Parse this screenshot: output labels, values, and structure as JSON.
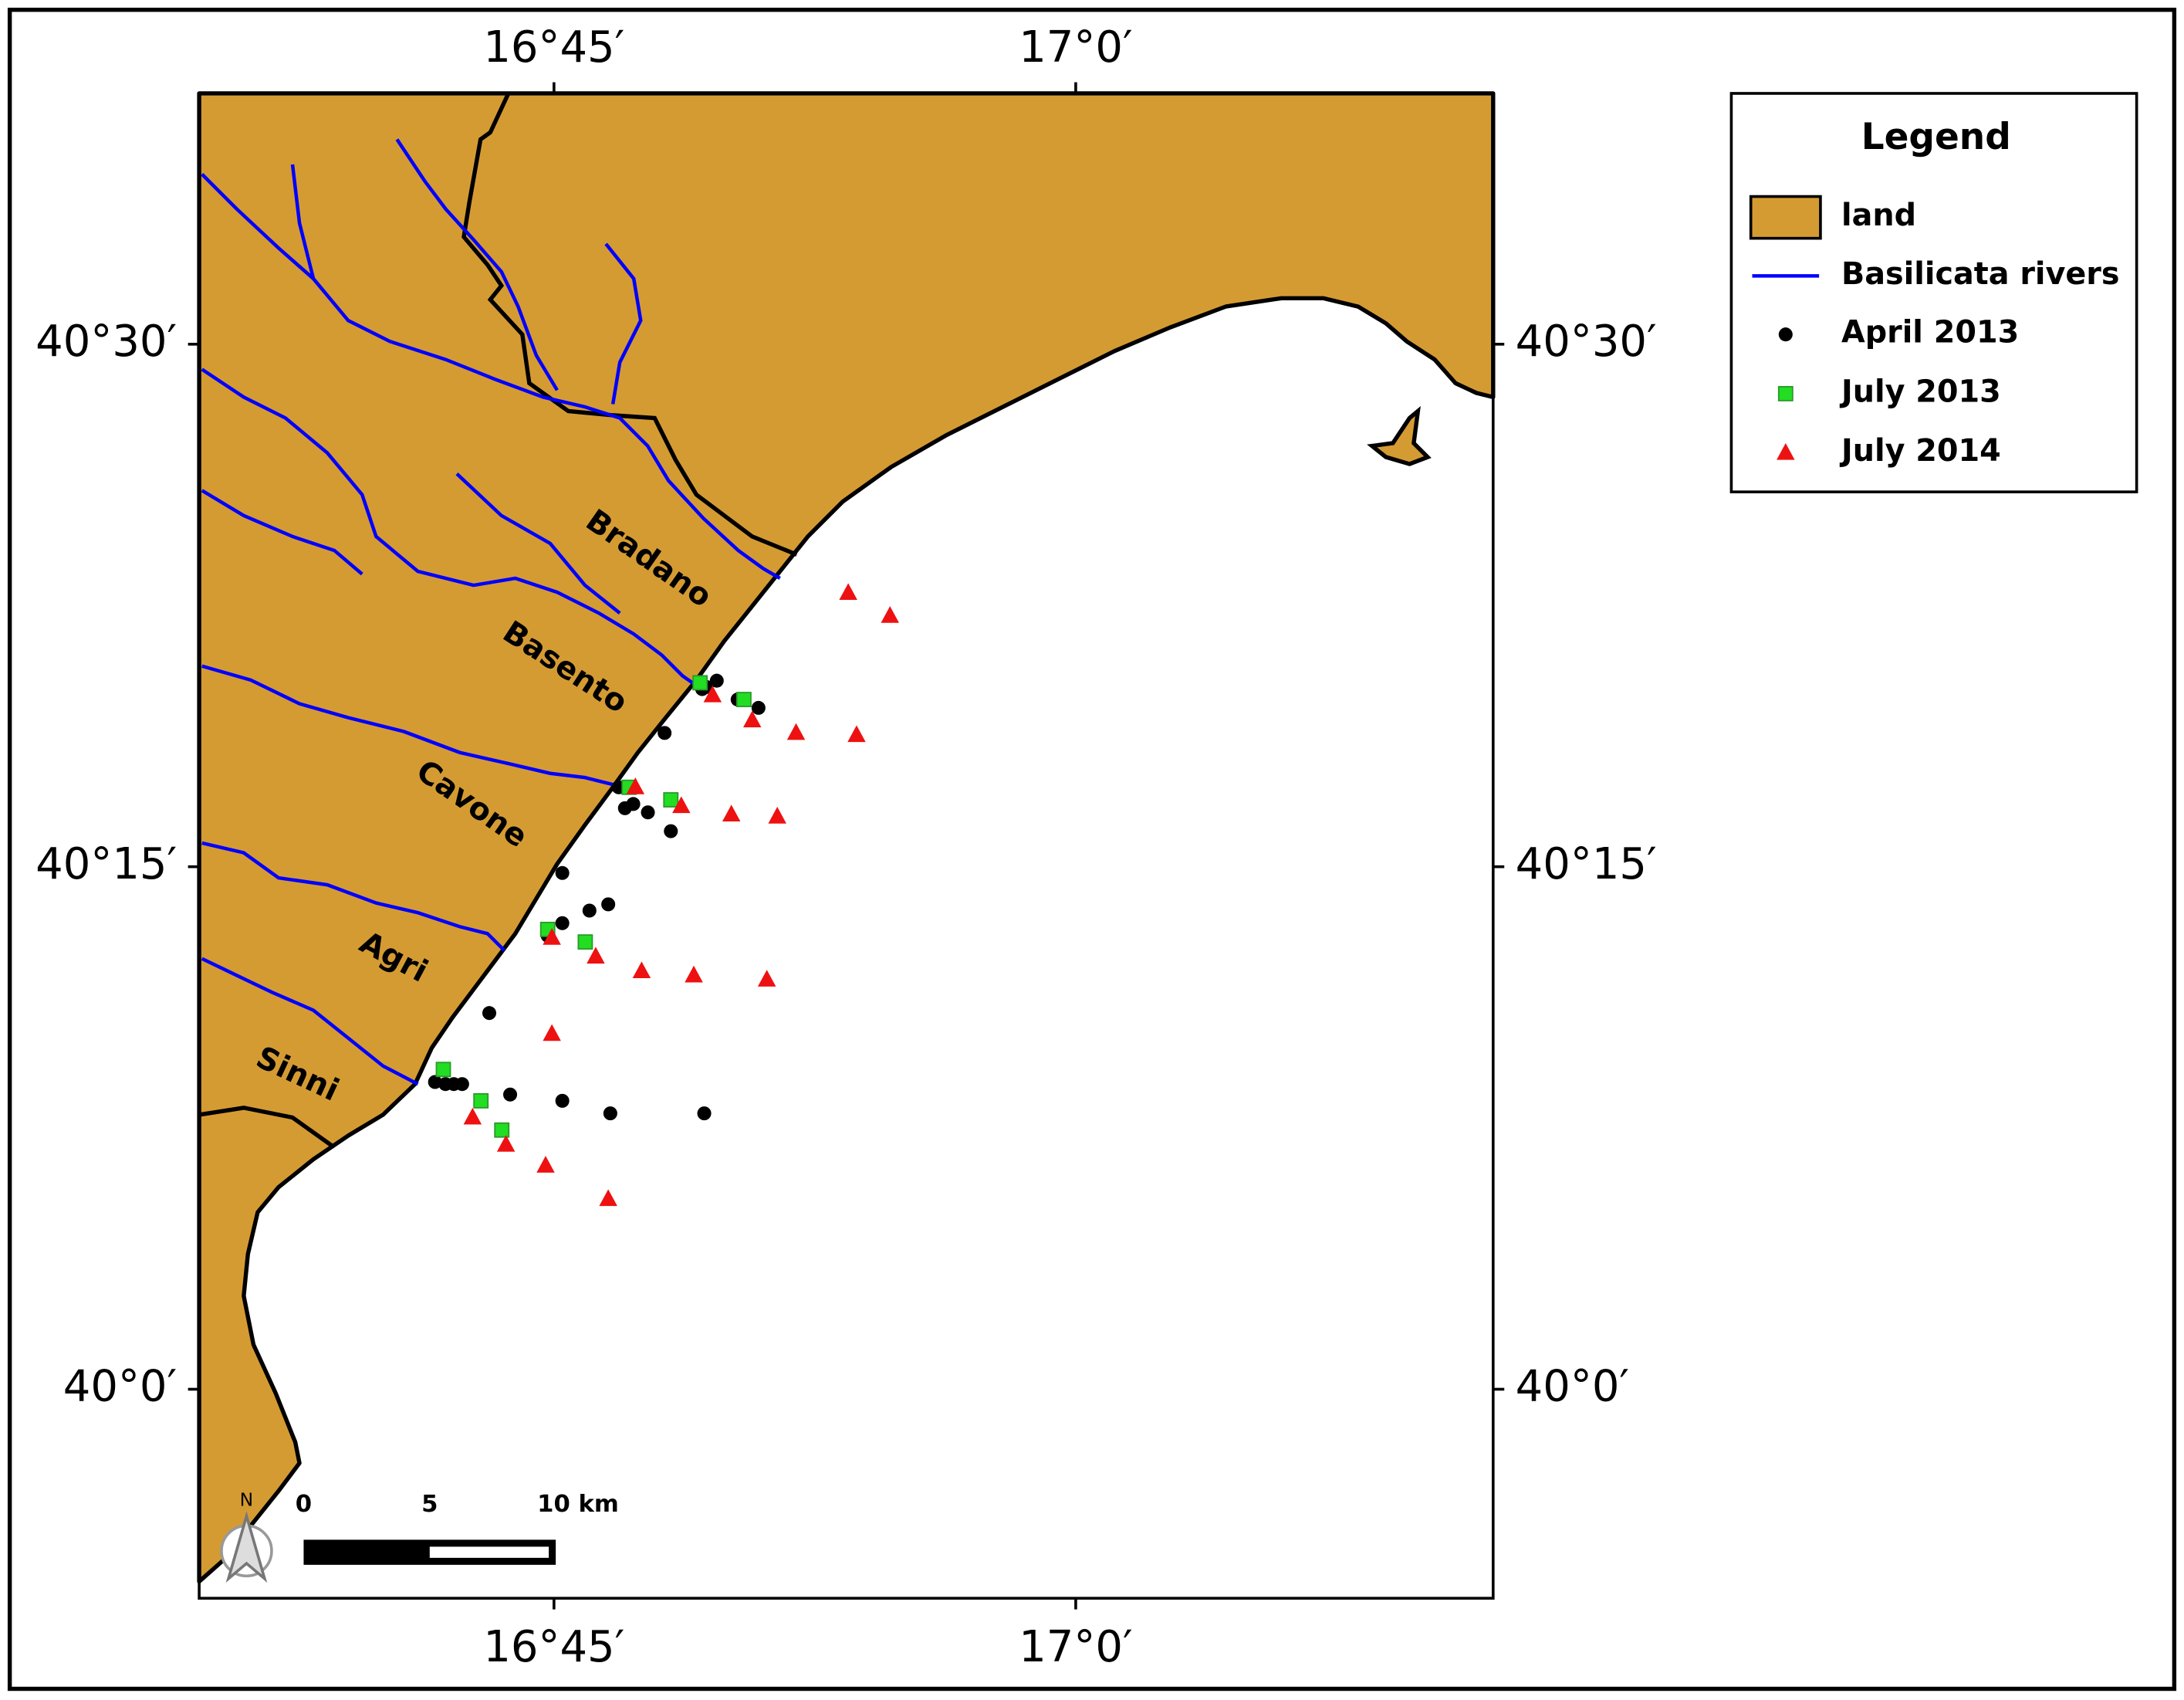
{
  "chart_data": {
    "type": "scatter",
    "xlim": [
      16.58,
      17.2
    ],
    "ylim": [
      39.9,
      40.62
    ],
    "xticks": [
      {
        "value": 16.75,
        "label": "16°45′"
      },
      {
        "value": 17.0,
        "label": "17°0′"
      }
    ],
    "yticks": [
      {
        "value": 40.5,
        "label": "40°30′"
      },
      {
        "value": 40.25,
        "label": "40°15′"
      },
      {
        "value": 40.0,
        "label": "40°0′"
      }
    ],
    "legend": {
      "title": "Legend",
      "position": "right"
    },
    "layers": [
      {
        "name": "land",
        "color": "#d59b33"
      },
      {
        "name": "Basilicata rivers",
        "color": "#0000ff"
      }
    ],
    "river_labels": [
      "Bradano",
      "Basento",
      "Cavone",
      "Agri",
      "Sinni"
    ],
    "scale_bar": [
      0,
      5,
      {
        "value": 10,
        "label": "10 km"
      }
    ],
    "north_label": "N",
    "series": [
      {
        "name": "April 2013",
        "color": "#000000",
        "marker": "circle",
        "x": [
          16.821,
          16.823,
          16.828,
          16.838,
          16.848,
          16.803,
          16.781,
          16.784,
          16.788,
          16.795,
          16.806,
          16.754,
          16.776,
          16.767,
          16.754,
          16.747,
          16.719,
          16.693,
          16.698,
          16.702,
          16.706,
          16.729,
          16.754,
          16.777,
          16.822
        ],
        "values": [
          40.335,
          40.336,
          40.339,
          40.33,
          40.326,
          40.314,
          40.288,
          40.278,
          40.28,
          40.276,
          40.267,
          40.247,
          40.232,
          40.229,
          40.223,
          40.217,
          40.18,
          40.147,
          40.146,
          40.146,
          40.146,
          40.141,
          40.138,
          40.132,
          40.132
        ]
      },
      {
        "name": "July 2013",
        "color": "#22dd22",
        "marker": "square",
        "x": [
          16.82,
          16.841,
          16.786,
          16.806,
          16.747,
          16.765,
          16.697,
          16.715,
          16.725
        ],
        "values": [
          40.338,
          40.33,
          40.288,
          40.282,
          40.22,
          40.214,
          40.153,
          40.138,
          40.124
        ]
      },
      {
        "name": "July 2014",
        "color": "#ee1111",
        "marker": "triangle",
        "x": [
          16.891,
          16.911,
          16.826,
          16.845,
          16.866,
          16.895,
          16.789,
          16.811,
          16.835,
          16.857,
          16.749,
          16.77,
          16.792,
          16.817,
          16.852,
          16.749,
          16.711,
          16.727,
          16.746,
          16.776
        ],
        "values": [
          40.381,
          40.37,
          40.332,
          40.32,
          40.314,
          40.313,
          40.288,
          40.279,
          40.275,
          40.274,
          40.216,
          40.207,
          40.2,
          40.198,
          40.196,
          40.17,
          40.13,
          40.117,
          40.107,
          40.091
        ]
      }
    ]
  }
}
